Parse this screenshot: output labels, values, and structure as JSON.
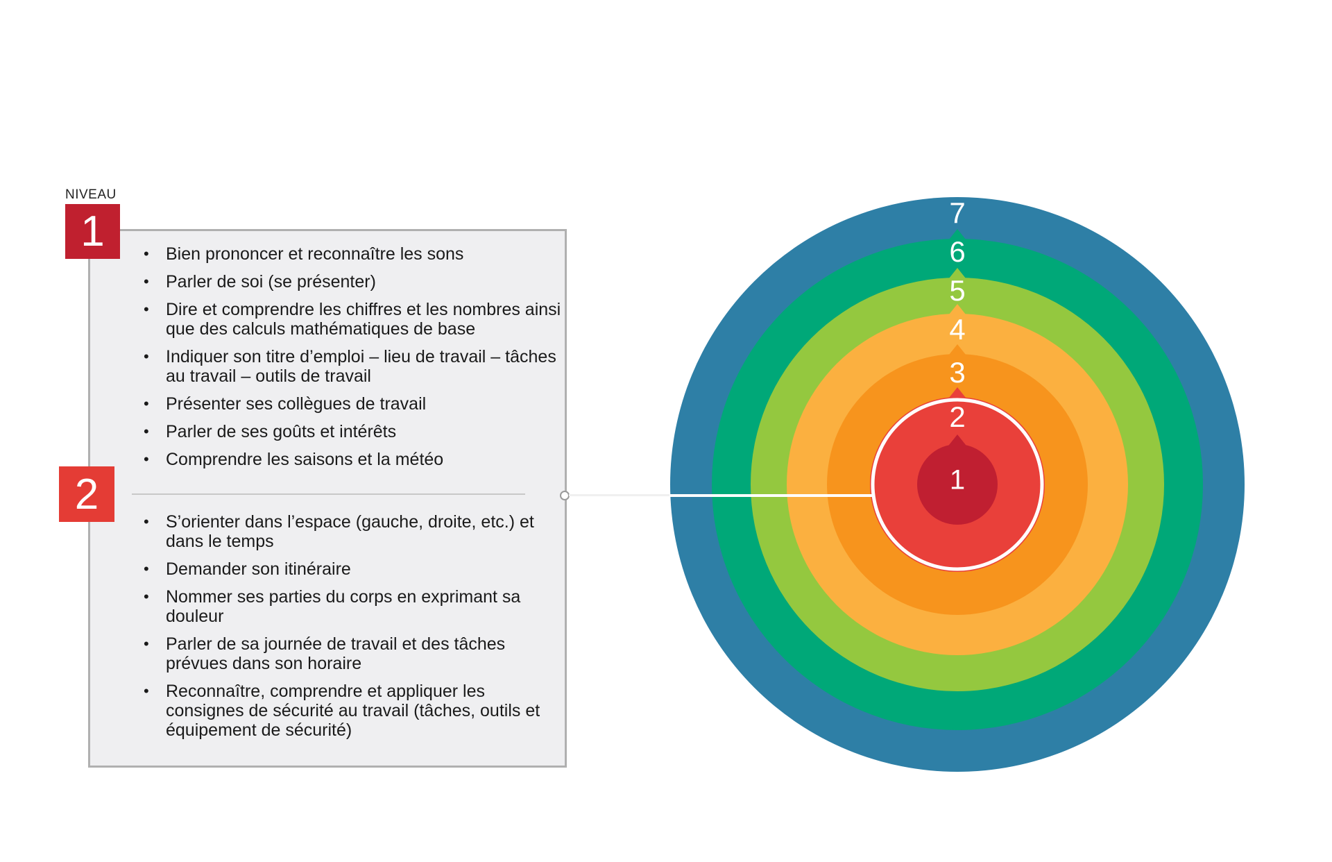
{
  "header": {
    "niveau_label": "NIVEAU"
  },
  "levels": [
    {
      "badge": "1",
      "items": [
        "Bien prononcer et reconnaître les sons",
        "Parler de soi (se présenter)",
        "Dire et comprendre les chiffres et les nombres ainsi que des calculs mathématiques de base",
        "Indiquer son titre d’emploi – lieu de travail – tâches au travail – outils de travail",
        "Présenter ses collègues de travail",
        "Parler de ses goûts et intérêts",
        "Comprendre les saisons et la météo"
      ],
      "color": "#c0202f"
    },
    {
      "badge": "2",
      "items": [
        "S’orienter dans l’espace (gauche, droite, etc.) et dans le temps",
        "Demander son itinéraire",
        "Nommer ses parties du corps en exprimant sa douleur",
        "Parler de sa journée de travail et des tâches prévues dans son horaire",
        "Reconnaître, comprendre et appliquer les consignes de sécurité au travail (tâches, outils et équipement de sécurité)"
      ],
      "color": "#e43c35"
    }
  ],
  "target": {
    "rings": [
      {
        "label": "7",
        "color": "#2e7fa6"
      },
      {
        "label": "6",
        "color": "#00a878"
      },
      {
        "label": "5",
        "color": "#94c83f"
      },
      {
        "label": "4",
        "color": "#fbb040"
      },
      {
        "label": "3",
        "color": "#f7941d"
      },
      {
        "label": "2",
        "color": "#e9403a"
      },
      {
        "label": "1",
        "color": "#c01f31"
      }
    ],
    "highlight_ring_color": "#ffffff"
  }
}
